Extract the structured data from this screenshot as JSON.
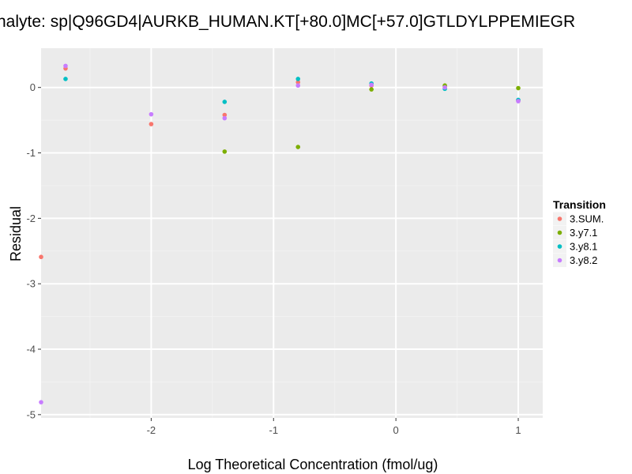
{
  "chart_data": {
    "type": "scatter",
    "title": "nalyte: sp|Q96GD4|AURKB_HUMAN.KT[+80.0]MC[+57.0]GTLDYLPPEMIEGR",
    "xlabel": "Log Theoretical Concentration (fmol/ug)",
    "ylabel": "Residual",
    "xlim": [
      -2.9,
      1.2
    ],
    "ylim": [
      -5.05,
      0.6
    ],
    "x_ticks": [
      -2,
      -1,
      0,
      1
    ],
    "x_tick_labels": [
      "-2",
      "-1",
      "0",
      "1"
    ],
    "y_ticks": [
      0,
      -1,
      -2,
      -3,
      -4,
      -5
    ],
    "y_tick_labels": [
      "0",
      "-1",
      "-2",
      "-3",
      "-4",
      "-5"
    ],
    "grid": true,
    "legend": {
      "title": "Transition",
      "position": "right"
    },
    "series": [
      {
        "name": "3.SUM.",
        "color": "#F8766D",
        "points": [
          [
            -2.9,
            -2.59
          ],
          [
            -2.7,
            0.29
          ],
          [
            -2.0,
            -0.56
          ],
          [
            -1.4,
            -0.42
          ],
          [
            -0.8,
            0.08
          ],
          [
            -0.2,
            0.03
          ],
          [
            0.4,
            0.01
          ],
          [
            1.0,
            -0.2
          ]
        ]
      },
      {
        "name": "3.y7.1",
        "color": "#7CAE00",
        "points": [
          [
            -1.4,
            -0.98
          ],
          [
            -0.8,
            -0.91
          ],
          [
            -0.2,
            -0.03
          ],
          [
            0.4,
            0.03
          ],
          [
            1.0,
            -0.01
          ]
        ]
      },
      {
        "name": "3.y8.1",
        "color": "#00BFC4",
        "points": [
          [
            -2.7,
            0.13
          ],
          [
            -1.4,
            -0.22
          ],
          [
            -0.8,
            0.13
          ],
          [
            -0.2,
            0.06
          ],
          [
            0.4,
            -0.02
          ],
          [
            1.0,
            -0.19
          ]
        ]
      },
      {
        "name": "3.y8.2",
        "color": "#C77CFF",
        "points": [
          [
            -2.9,
            -4.81
          ],
          [
            -2.7,
            0.33
          ],
          [
            -2.0,
            -0.41
          ],
          [
            -1.4,
            -0.47
          ],
          [
            -0.8,
            0.03
          ],
          [
            -0.2,
            0.04
          ],
          [
            0.4,
            0.0
          ],
          [
            1.0,
            -0.21
          ]
        ]
      }
    ]
  }
}
